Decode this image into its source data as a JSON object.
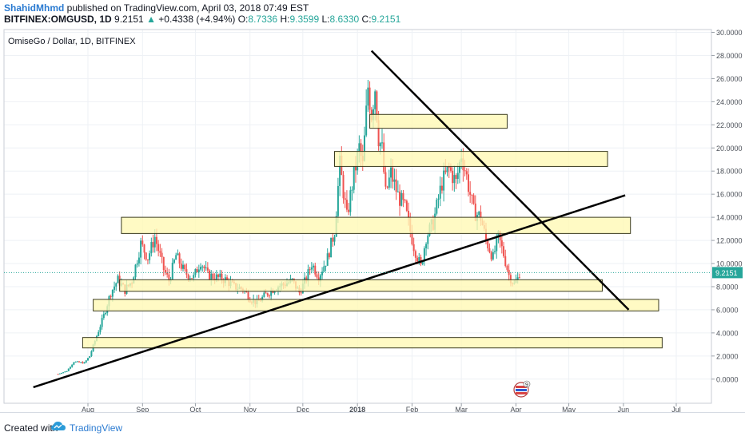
{
  "header": {
    "author": "ShahidMhmd",
    "published": "published on TradingView.com, April 03, 2018 07:49 EST",
    "symbol": "BITFINEX:OMGUSD, 1D",
    "last": "9.2151",
    "change_arrow": "▲",
    "change": "+0.4338 (+4.94%)",
    "o_label": "O:",
    "o_value": "8.7336",
    "h_label": "H:",
    "h_value": "9.3599",
    "l_label": "L:",
    "l_value": "8.6330",
    "c_label": "C:",
    "c_value": "9.2151"
  },
  "chart_data": {
    "type": "candlestick",
    "title": "OmiseGo / Dollar, 1D, BITFINEX",
    "ylim": [
      -1.5,
      30
    ],
    "y_ticks": [
      "0.0000",
      "2.0000",
      "4.0000",
      "6.0000",
      "8.0000",
      "10.0000",
      "12.0000",
      "14.0000",
      "16.0000",
      "18.0000",
      "20.0000",
      "22.0000",
      "24.0000",
      "26.0000",
      "28.0000",
      "30.0000"
    ],
    "x_ticks": [
      {
        "label": "Aug",
        "date": "2017-08-01"
      },
      {
        "label": "Sep",
        "date": "2017-09-01"
      },
      {
        "label": "Oct",
        "date": "2017-10-01"
      },
      {
        "label": "Nov",
        "date": "2017-11-01"
      },
      {
        "label": "Dec",
        "date": "2017-12-01"
      },
      {
        "label": "2018",
        "date": "2018-01-01"
      },
      {
        "label": "Feb",
        "date": "2018-02-01"
      },
      {
        "label": "Mar",
        "date": "2018-03-01"
      },
      {
        "label": "Apr",
        "date": "2018-04-01"
      },
      {
        "label": "May",
        "date": "2018-05-01"
      },
      {
        "label": "Jun",
        "date": "2018-06-01"
      },
      {
        "label": "Jul",
        "date": "2018-07-01"
      }
    ],
    "last_price_label": "9.2151",
    "last_price": 9.2151,
    "price_path": [
      {
        "d": "2017-07-15",
        "p": 0.45
      },
      {
        "d": "2017-07-20",
        "p": 0.7
      },
      {
        "d": "2017-07-24",
        "p": 1.5
      },
      {
        "d": "2017-07-30",
        "p": 1.4
      },
      {
        "d": "2017-08-02",
        "p": 2.0
      },
      {
        "d": "2017-08-05",
        "p": 3.3
      },
      {
        "d": "2017-08-10",
        "p": 5.5
      },
      {
        "d": "2017-08-14",
        "p": 7.5
      },
      {
        "d": "2017-08-18",
        "p": 8.6
      },
      {
        "d": "2017-08-22",
        "p": 7.7
      },
      {
        "d": "2017-08-26",
        "p": 8.5
      },
      {
        "d": "2017-08-31",
        "p": 11.7
      },
      {
        "d": "2017-09-04",
        "p": 10.5
      },
      {
        "d": "2017-09-08",
        "p": 12.3
      },
      {
        "d": "2017-09-13",
        "p": 9.5
      },
      {
        "d": "2017-09-16",
        "p": 8.5
      },
      {
        "d": "2017-09-20",
        "p": 10.7
      },
      {
        "d": "2017-09-25",
        "p": 9.2
      },
      {
        "d": "2017-09-30",
        "p": 8.8
      },
      {
        "d": "2017-10-04",
        "p": 10.2
      },
      {
        "d": "2017-10-08",
        "p": 9.0
      },
      {
        "d": "2017-10-13",
        "p": 8.8
      },
      {
        "d": "2017-10-18",
        "p": 8.6
      },
      {
        "d": "2017-10-23",
        "p": 8.0
      },
      {
        "d": "2017-10-28",
        "p": 7.8
      },
      {
        "d": "2017-11-01",
        "p": 7.0
      },
      {
        "d": "2017-11-05",
        "p": 6.6
      },
      {
        "d": "2017-11-10",
        "p": 7.3
      },
      {
        "d": "2017-11-15",
        "p": 7.9
      },
      {
        "d": "2017-11-20",
        "p": 8.2
      },
      {
        "d": "2017-11-25",
        "p": 8.5
      },
      {
        "d": "2017-11-29",
        "p": 7.5
      },
      {
        "d": "2017-12-03",
        "p": 8.7
      },
      {
        "d": "2017-12-06",
        "p": 10.0
      },
      {
        "d": "2017-12-10",
        "p": 8.9
      },
      {
        "d": "2017-12-15",
        "p": 10.5
      },
      {
        "d": "2017-12-19",
        "p": 12.8
      },
      {
        "d": "2017-12-22",
        "p": 18.5
      },
      {
        "d": "2017-12-26",
        "p": 14.0
      },
      {
        "d": "2017-12-29",
        "p": 16.8
      },
      {
        "d": "2018-01-02",
        "p": 20.0
      },
      {
        "d": "2018-01-04",
        "p": 18.4
      },
      {
        "d": "2018-01-07",
        "p": 25.3
      },
      {
        "d": "2018-01-09",
        "p": 23.0
      },
      {
        "d": "2018-01-11",
        "p": 25.3
      },
      {
        "d": "2018-01-13",
        "p": 21.0
      },
      {
        "d": "2018-01-15",
        "p": 19.8
      },
      {
        "d": "2018-01-17",
        "p": 16.0
      },
      {
        "d": "2018-01-20",
        "p": 17.8
      },
      {
        "d": "2018-01-24",
        "p": 15.9
      },
      {
        "d": "2018-01-28",
        "p": 14.8
      },
      {
        "d": "2018-02-02",
        "p": 11.5
      },
      {
        "d": "2018-02-06",
        "p": 9.7
      },
      {
        "d": "2018-02-09",
        "p": 12.3
      },
      {
        "d": "2018-02-13",
        "p": 13.5
      },
      {
        "d": "2018-02-18",
        "p": 17.0
      },
      {
        "d": "2018-02-22",
        "p": 18.2
      },
      {
        "d": "2018-02-26",
        "p": 17.0
      },
      {
        "d": "2018-03-01",
        "p": 19.5
      },
      {
        "d": "2018-03-04",
        "p": 17.5
      },
      {
        "d": "2018-03-08",
        "p": 14.5
      },
      {
        "d": "2018-03-12",
        "p": 14.0
      },
      {
        "d": "2018-03-15",
        "p": 12.0
      },
      {
        "d": "2018-03-19",
        "p": 10.5
      },
      {
        "d": "2018-03-22",
        "p": 12.3
      },
      {
        "d": "2018-03-25",
        "p": 10.8
      },
      {
        "d": "2018-03-28",
        "p": 9.0
      },
      {
        "d": "2018-03-31",
        "p": 8.2
      },
      {
        "d": "2018-04-02",
        "p": 8.7
      },
      {
        "d": "2018-04-03",
        "p": 9.2151
      }
    ],
    "zones": [
      {
        "from": "2018-01-08",
        "to": "2018-03-27",
        "bottom": 21.7,
        "top": 22.9
      },
      {
        "from": "2017-12-19",
        "to": "2018-05-23",
        "bottom": 18.4,
        "top": 19.7
      },
      {
        "from": "2017-08-20",
        "to": "2018-06-05",
        "bottom": 12.6,
        "top": 14.0
      },
      {
        "from": "2017-08-19",
        "to": "2018-05-20",
        "bottom": 7.6,
        "top": 8.6
      },
      {
        "from": "2017-08-04",
        "to": "2018-06-21",
        "bottom": 5.9,
        "top": 6.9
      },
      {
        "from": "2017-07-29",
        "to": "2018-06-23",
        "bottom": 2.7,
        "top": 3.6
      }
    ],
    "trendlines": [
      {
        "from": {
          "d": "2017-07-01",
          "p": -0.7
        },
        "to": {
          "d": "2018-06-02",
          "p": 15.9
        }
      },
      {
        "from": {
          "d": "2018-01-09",
          "p": 28.4
        },
        "to": {
          "d": "2018-06-04",
          "p": 6.0
        }
      }
    ]
  },
  "footer": {
    "created": "Created with",
    "brand": "TradingView"
  },
  "colors": {
    "up": "#26a69a",
    "down": "#ef5350",
    "zone_fill": "#fff9b3",
    "zone_stroke": "#3b3b1f",
    "trend": "#000000",
    "price_line": "#26a69a"
  }
}
